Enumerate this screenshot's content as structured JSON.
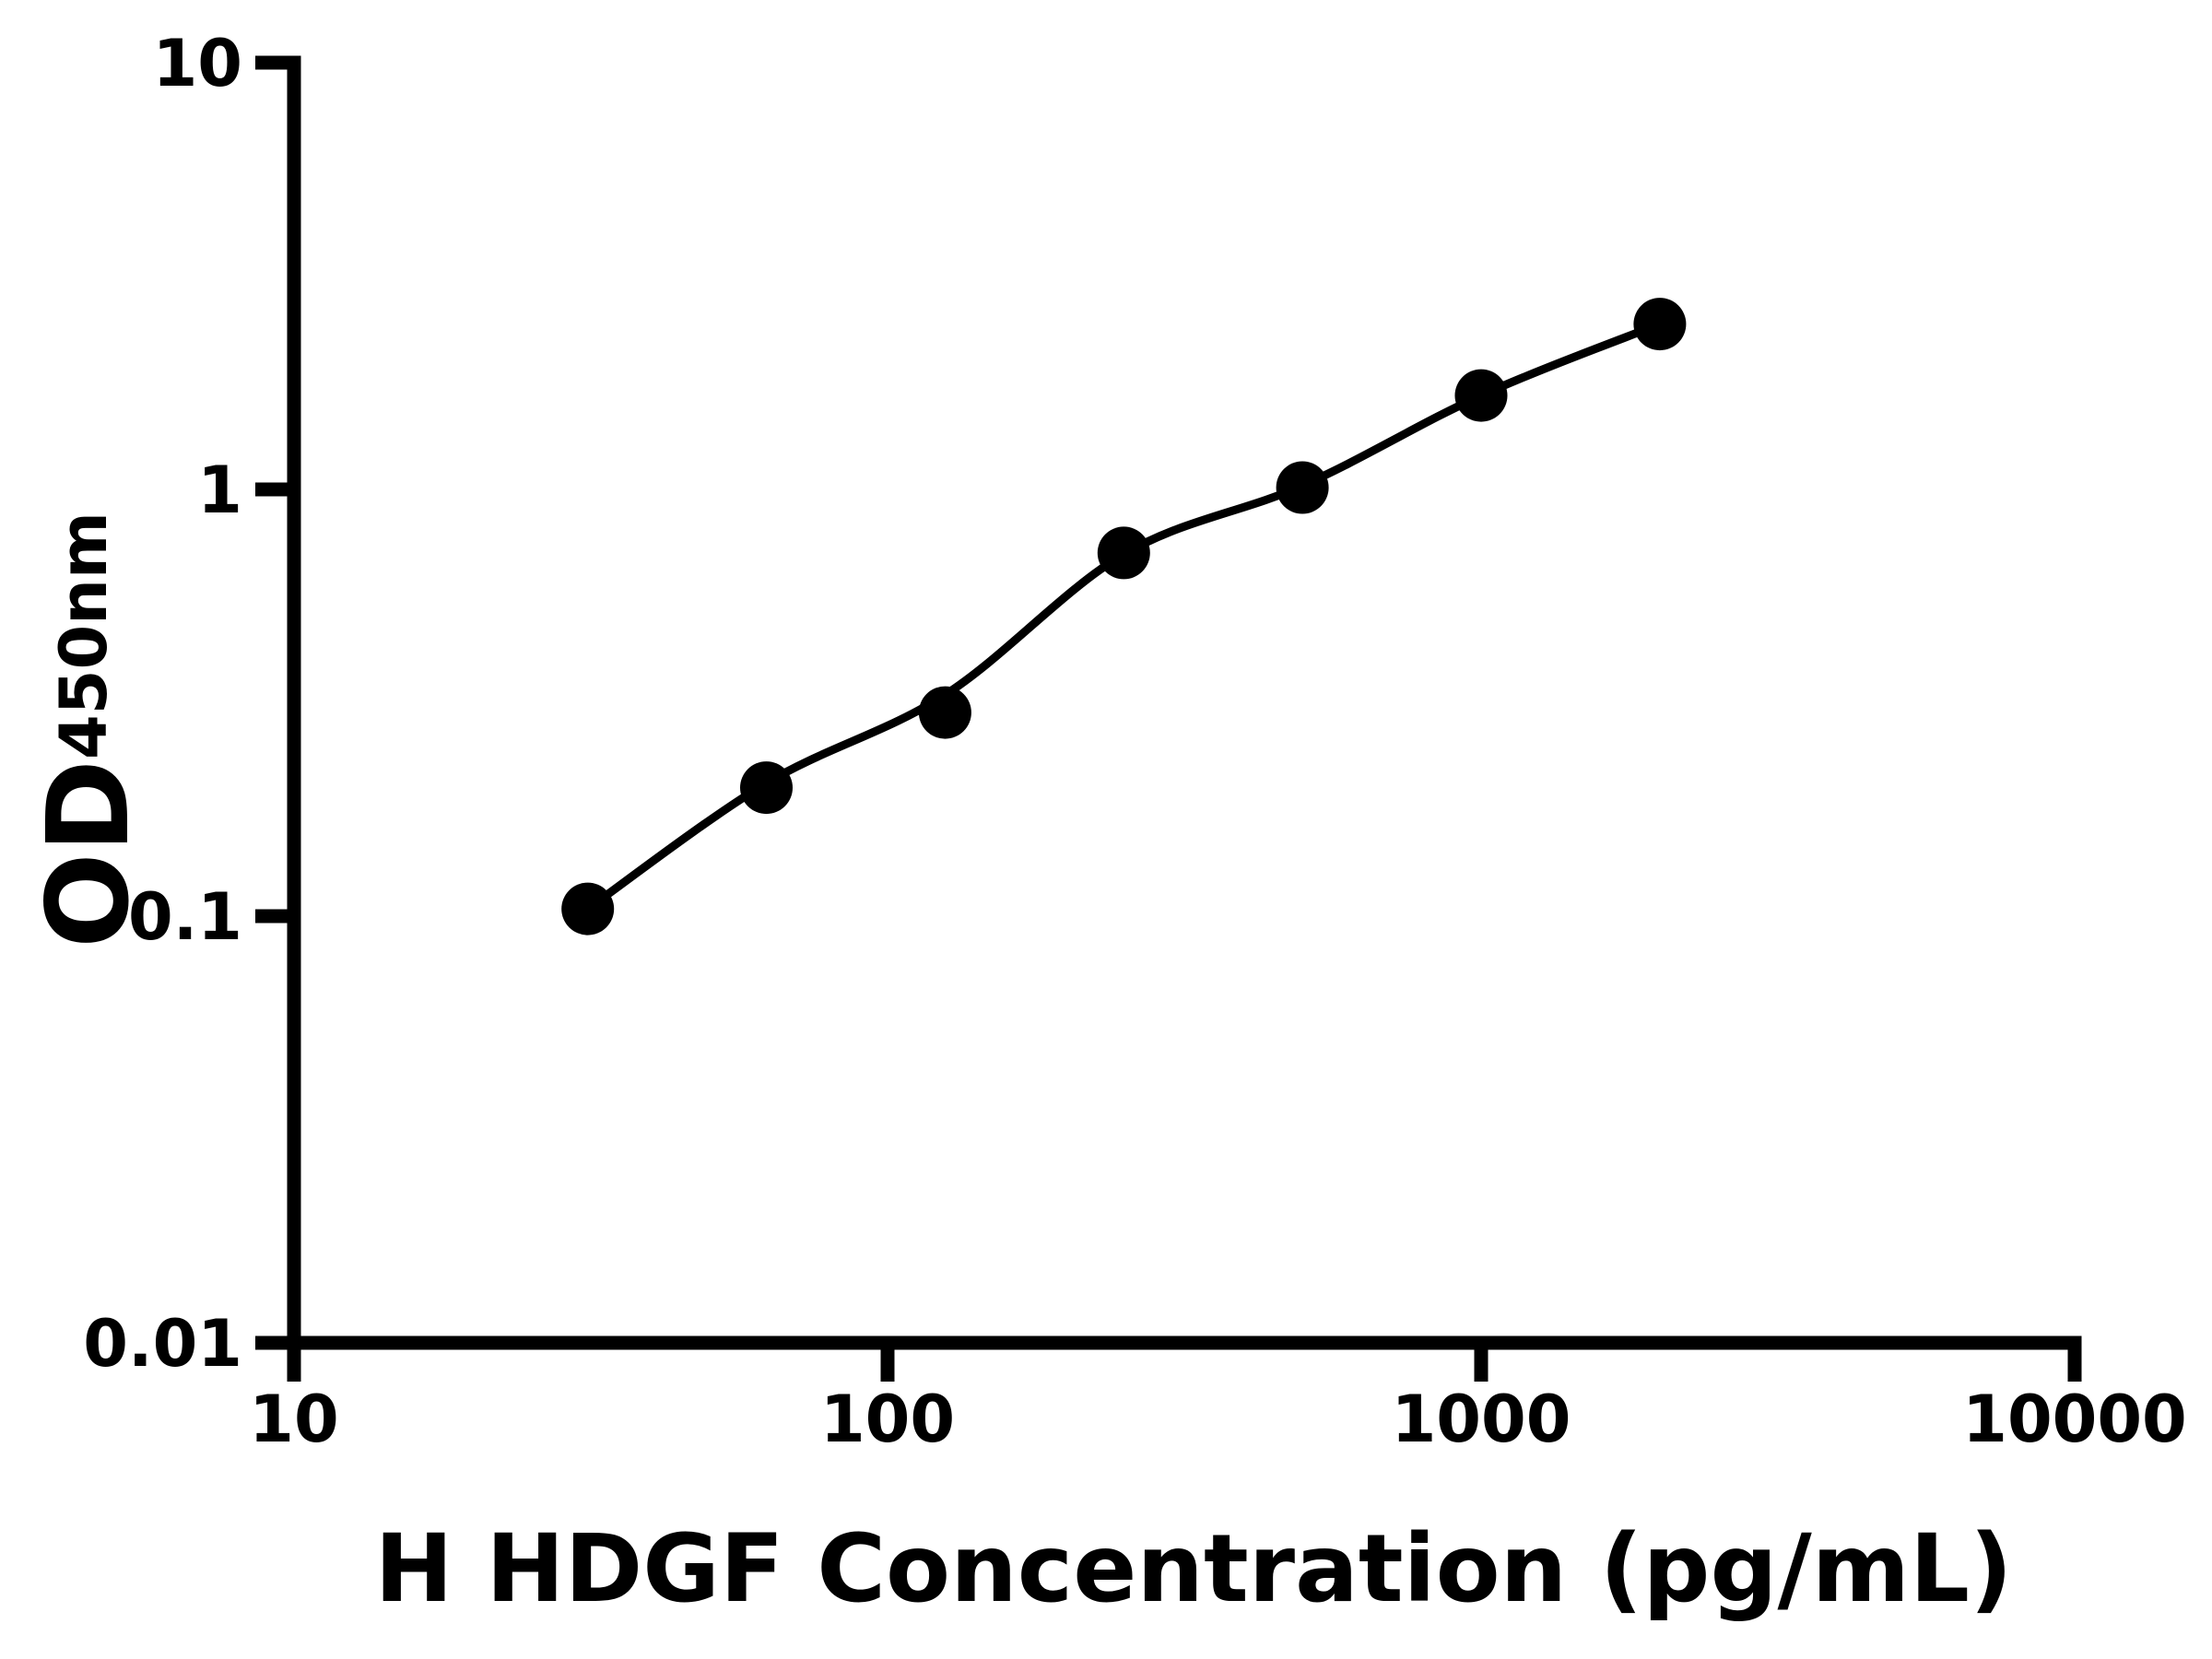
{
  "figure": {
    "kind": "elisa-standard-curve",
    "background_color": "#ffffff",
    "ink_color": "#000000"
  },
  "chart_data": {
    "type": "scatter",
    "title": "",
    "xlabel": "H HDGF Concentration (pg/mL)",
    "ylabel_base": "OD",
    "ylabel_subscript": "450nm",
    "x_scale": "log",
    "y_scale": "log",
    "xlim": [
      10,
      10000
    ],
    "ylim": [
      0.01,
      10
    ],
    "x_ticks": [
      10,
      100,
      1000,
      10000
    ],
    "x_tick_labels": [
      "10",
      "100",
      "1000",
      "10000"
    ],
    "y_ticks": [
      10,
      1,
      0.1,
      0.01
    ],
    "y_tick_labels": [
      "10",
      "1",
      "0.1",
      "0.01"
    ],
    "grid": false,
    "legend_position": "none",
    "series": [
      {
        "name": "standard-points",
        "marker": "filled-circle",
        "color": "#000000",
        "x": [
          31.25,
          62.5,
          125,
          250,
          500,
          1000,
          2000
        ],
        "y": [
          0.104,
          0.2,
          0.3,
          0.71,
          1.01,
          1.66,
          2.44
        ]
      }
    ],
    "fit_curve": {
      "name": "standard-fit-curve",
      "color": "#000000",
      "x": [
        31.25,
        62.5,
        125,
        250,
        500,
        1000,
        2000
      ],
      "y": [
        0.104,
        0.205,
        0.33,
        0.705,
        1.02,
        1.66,
        2.44
      ]
    }
  }
}
